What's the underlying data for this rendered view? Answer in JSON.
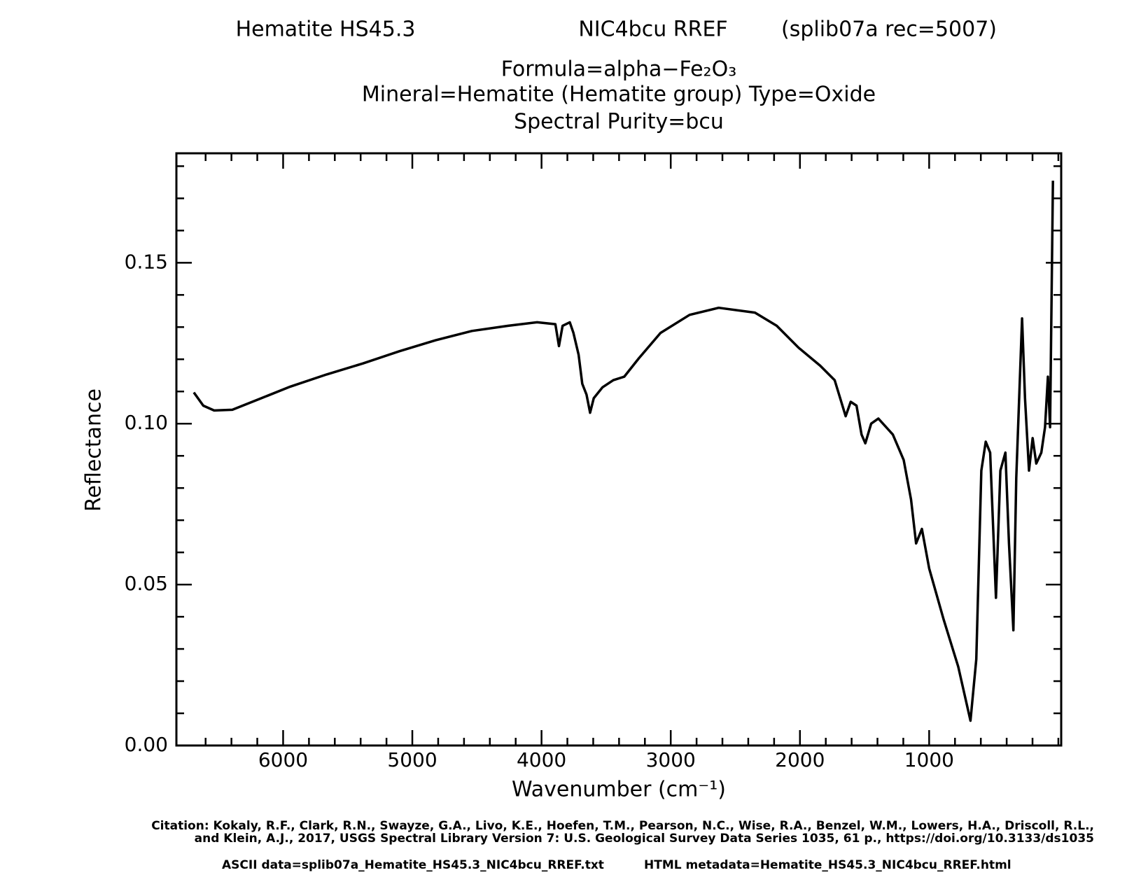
{
  "chart_data": {
    "type": "line",
    "title": "Hematite HS45.3",
    "subtitle": "NIC4bcu RREF",
    "record": "(splib07a rec=5007)",
    "formula": "Formula=alpha−Fe₂O₃",
    "mineral": "Mineral=Hematite (Hematite group)  Type=Oxide",
    "purity": "Spectral Purity=bcu",
    "xlabel": "Wavenumber (cm⁻¹)",
    "ylabel": "Reflectance",
    "citation": [
      "Citation: Kokaly, R.F., Clark, R.N., Swayze, G.A., Livo, K.E., Hoefen, T.M., Pearson, N.C., Wise, R.A., Benzel, W.M., Lowers, H.A., Driscoll, R.L.,",
      "and Klein, A.J., 2017, USGS Spectral Library Version 7: U.S. Geological Survey Data Series 1035, 61 p., https://doi.org/10.3133/ds1035"
    ],
    "ascii_data": "ASCII data=splib07a_Hematite_HS45.3_NIC4bcu_RREF.txt",
    "html_metadata": "HTML metadata=Hematite_HS45.3_NIC4bcu_RREF.html",
    "xlim": [
      6826,
      -22
    ],
    "ylim": [
      0,
      0.184
    ],
    "xticks": [
      6000,
      5000,
      4000,
      3000,
      2000,
      1000
    ],
    "yticks": [
      {
        "value": 0,
        "label": "0.00"
      },
      {
        "value": 0.05,
        "label": "0.05"
      },
      {
        "value": 0.1,
        "label": "0.10"
      },
      {
        "value": 0.15,
        "label": "0.15"
      }
    ],
    "xminor_ticks": [
      6600,
      6400,
      6200,
      5800,
      5600,
      5400,
      5200,
      4800,
      4600,
      4400,
      4200,
      3800,
      3600,
      3400,
      3200,
      2800,
      2600,
      2400,
      2200,
      1800,
      1600,
      1400,
      1200,
      800,
      600,
      400,
      200,
      0
    ],
    "yminor_ticks": [
      0.01,
      0.02,
      0.03,
      0.04,
      0.06,
      0.07,
      0.08,
      0.09,
      0.11,
      0.12,
      0.13,
      0.14,
      0.16,
      0.17,
      0.18
    ],
    "series": [
      {
        "color": "#000000",
        "x": [
          6691,
          6618,
          6534,
          6393,
          6169,
          5944,
          5663,
          5382,
          5101,
          4820,
          4539,
          4258,
          4034,
          3893,
          3865,
          3837,
          3781,
          3753,
          3713,
          3685,
          3652,
          3624,
          3596,
          3528,
          3444,
          3360,
          3247,
          3079,
          2854,
          2629,
          2348,
          2180,
          2011,
          1843,
          1731,
          1646,
          1607,
          1562,
          1523,
          1494,
          1449,
          1393,
          1281,
          1197,
          1140,
          1101,
          1056,
          1000,
          888,
          775,
          680,
          635,
          596,
          562,
          528,
          483,
          449,
          410,
          382,
          348,
          326,
          281,
          258,
          227,
          199,
          171,
          132,
          103,
          81,
          64,
          42
        ],
        "values": [
          0.1097,
          0.1056,
          0.1041,
          0.1043,
          0.1079,
          0.1115,
          0.1153,
          0.1187,
          0.1225,
          0.1259,
          0.1288,
          0.1304,
          0.1315,
          0.1309,
          0.1241,
          0.1304,
          0.1315,
          0.1282,
          0.1214,
          0.1124,
          0.109,
          0.1034,
          0.1079,
          0.1113,
          0.1135,
          0.1146,
          0.1203,
          0.1282,
          0.1338,
          0.136,
          0.1345,
          0.1304,
          0.1236,
          0.118,
          0.1135,
          0.1023,
          0.1068,
          0.1056,
          0.0966,
          0.0939,
          0.1,
          0.1016,
          0.0966,
          0.0887,
          0.0764,
          0.0628,
          0.0673,
          0.055,
          0.0392,
          0.0245,
          0.0077,
          0.0268,
          0.0854,
          0.0944,
          0.091,
          0.0459,
          0.0854,
          0.091,
          0.0628,
          0.0358,
          0.0831,
          0.1327,
          0.1079,
          0.0854,
          0.0955,
          0.0876,
          0.091,
          0.0989,
          0.1146,
          0.0989,
          0.1755
        ]
      }
    ]
  }
}
